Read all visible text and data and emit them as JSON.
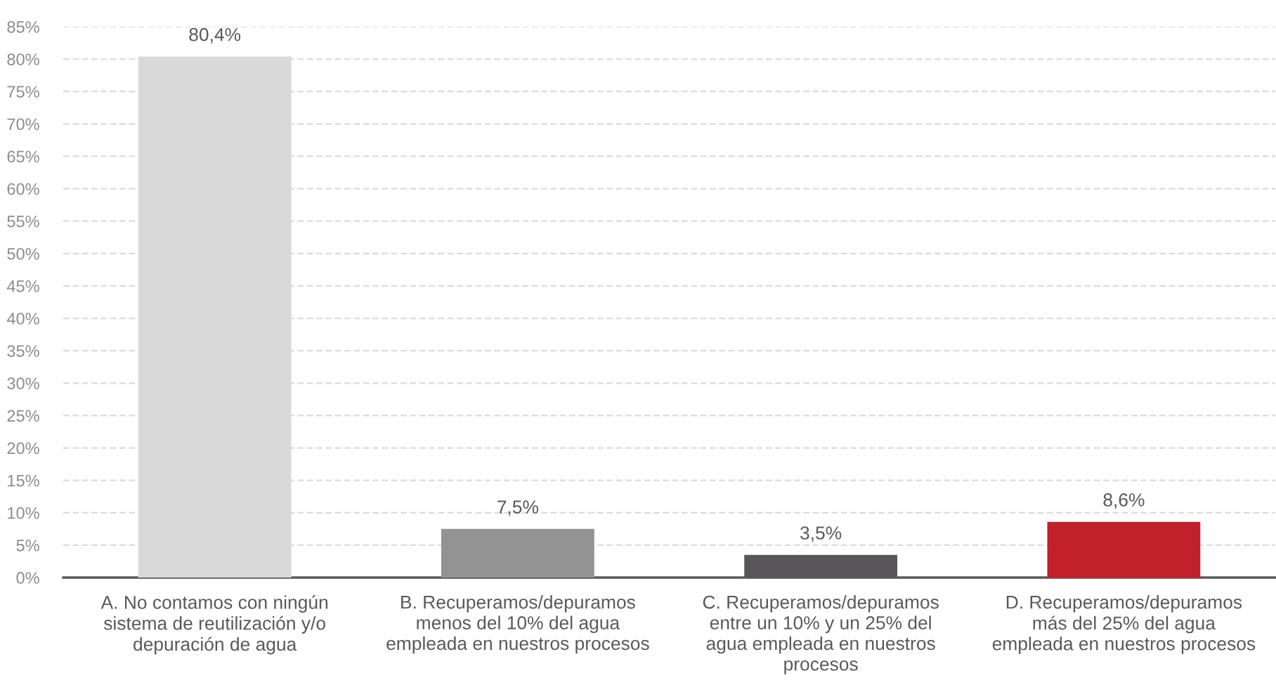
{
  "chart_data": {
    "type": "bar",
    "categories": [
      "A. No contamos con ningún\nsistema de reutilización y/o\ndepuración de agua",
      "B. Recuperamos/depuramos\nmenos del 10% del agua\nempleada en nuestros procesos",
      "C. Recuperamos/depuramos\nentre un 10% y un 25% del\nagua empleada en nuestros\nprocesos",
      "D. Recuperamos/depuramos\nmás del 25% del agua\nempleada en nuestros procesos"
    ],
    "values": [
      80.4,
      7.5,
      3.5,
      8.6
    ],
    "colors": [
      "#d9d9d9",
      "#939393",
      "#58565a",
      "#c1212a"
    ],
    "value_labels": [
      "80,4%",
      "7,5%",
      "3,5%",
      "8,6%"
    ],
    "ylim": [
      0,
      85
    ],
    "yticks": [
      {
        "value": 0,
        "label": "0%"
      },
      {
        "value": 5,
        "label": "5%"
      },
      {
        "value": 10,
        "label": "10%"
      },
      {
        "value": 15,
        "label": "15%"
      },
      {
        "value": 20,
        "label": "20%"
      },
      {
        "value": 25,
        "label": "25%"
      },
      {
        "value": 30,
        "label": "30%"
      },
      {
        "value": 35,
        "label": "35%"
      },
      {
        "value": 40,
        "label": "40%"
      },
      {
        "value": 45,
        "label": "45%"
      },
      {
        "value": 50,
        "label": "50%"
      },
      {
        "value": 55,
        "label": "55%"
      },
      {
        "value": 60,
        "label": "60%"
      },
      {
        "value": 65,
        "label": "65%"
      },
      {
        "value": 70,
        "label": "70%"
      },
      {
        "value": 75,
        "label": "75%"
      },
      {
        "value": 80,
        "label": "80%"
      },
      {
        "value": 85,
        "label": "85%"
      }
    ],
    "grid": "y"
  }
}
